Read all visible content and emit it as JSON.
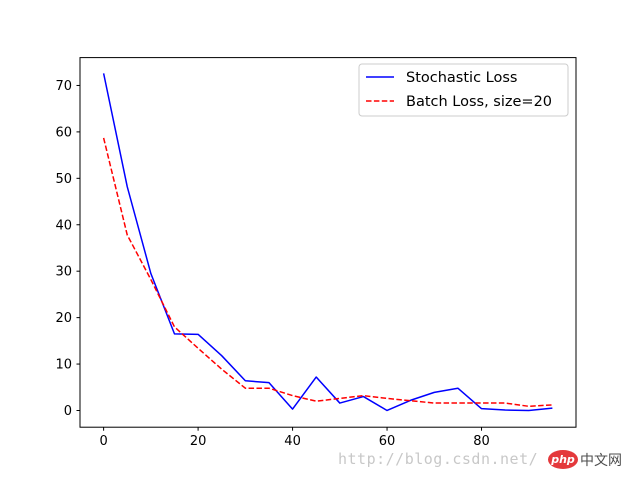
{
  "chart_data": {
    "type": "line",
    "title": "",
    "xlabel": "",
    "ylabel": "",
    "xlim": [
      -5,
      100
    ],
    "ylim": [
      -3.6,
      76
    ],
    "x_ticks": [
      0,
      20,
      40,
      60,
      80
    ],
    "y_ticks": [
      0,
      10,
      20,
      30,
      40,
      50,
      60,
      70
    ],
    "grid": false,
    "legend_position": "upper right",
    "series": [
      {
        "name": "Stochastic Loss",
        "color": "#0000ff",
        "style": "solid",
        "x": [
          0,
          5,
          10,
          15,
          20,
          25,
          30,
          35,
          40,
          45,
          50,
          55,
          60,
          65,
          70,
          75,
          80,
          85,
          90,
          95
        ],
        "values": [
          72.6,
          48.2,
          29.5,
          16.5,
          16.4,
          11.8,
          6.4,
          6.0,
          0.3,
          7.2,
          1.6,
          3.0,
          0.0,
          2.2,
          3.9,
          4.8,
          0.4,
          0.1,
          0.0,
          0.5
        ]
      },
      {
        "name": "Batch Loss, size=20",
        "color": "#ff0000",
        "style": "dashed",
        "x": [
          0,
          5,
          10,
          15,
          20,
          25,
          30,
          35,
          40,
          45,
          50,
          55,
          60,
          65,
          70,
          75,
          80,
          85,
          90,
          95
        ],
        "values": [
          58.7,
          37.8,
          28.2,
          18.0,
          13.4,
          8.9,
          4.8,
          4.8,
          3.2,
          2.0,
          2.6,
          3.2,
          2.6,
          2.1,
          1.6,
          1.6,
          1.6,
          1.6,
          0.9,
          1.2
        ]
      }
    ]
  },
  "watermark": {
    "url": "http://blog.csdn.net/",
    "logo": "php",
    "text": "中文网"
  }
}
